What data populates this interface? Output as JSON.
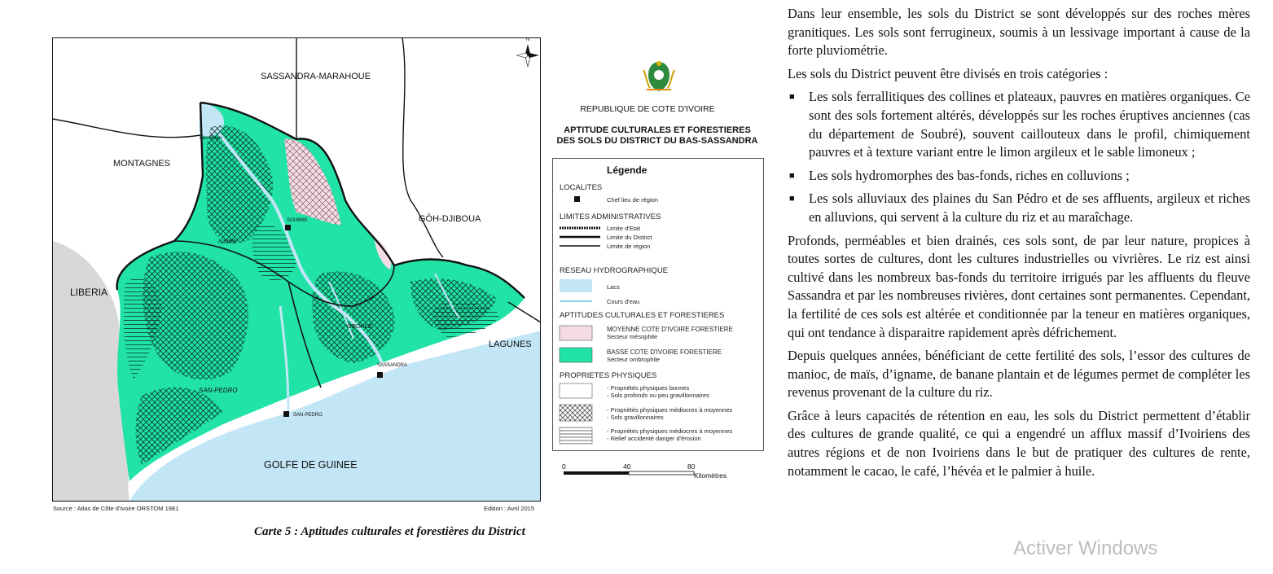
{
  "map": {
    "neighbors": {
      "sassandra_marahoue": "SASSANDRA-MARAHOUE",
      "montagnes": "MONTAGNES",
      "goh_djiboua": "GÔH-DJIBOUA",
      "liberia": "LIBERIA",
      "lagunes": "LAGUNES",
      "golfe": "GOLFE DE GUINEE"
    },
    "places": {
      "lac_buyo": "Lac Buyo",
      "soubre": "SOUBRE",
      "nawa": "NAWA",
      "gbokle": "GBOKLE",
      "sassandra": "SASSANDRA",
      "san_pedro_region": "SAN-PEDRO",
      "san_pedro_town": "SAN-PEDRO",
      "north": "N"
    },
    "source": "Source : Atlas de Côte d'Ivoire ORSTOM 1981",
    "edition": "Edition : Avril 2015",
    "caption": "Carte 5 : Aptitudes culturales et forestières du District",
    "colors": {
      "ombrophile": "#21e3a7",
      "mesophile": "#f5dbe3",
      "water": "#c3e6f7",
      "outside": "#d8d8d8",
      "boundary": "#111111"
    }
  },
  "header": {
    "republic": "REPUBLIQUE DE COTE D'IVOIRE",
    "title_line1": "APTITUDE CULTURALES ET FORESTIERES",
    "title_line2": "DES SOLS DU DISTRICT DU BAS-SASSANDRA",
    "emblem_icon": "coat-of-arms-icon"
  },
  "legend": {
    "title": "Légende",
    "localites": "LOCALITES",
    "chef_lieu": "Chef lieu de région",
    "limites": "LIMITES ADMINISTRATIVES",
    "limite_etat": "Limite d'Etat",
    "limite_district": "Limite du District",
    "limite_region": "Limite de région",
    "reseau": "RESEAU HYDROGRAPHIQUE",
    "lacs": "Lacs",
    "cours": "Cours d'eau",
    "aptitudes": "APTITUDES CULTURALES ET FORESTIERES",
    "moyenne_1": "MOYENNE COTE D'IVOIRE FORESTIERE",
    "moyenne_2": "Secteur mésophile",
    "basse_1": "BASSE COTE D'IVOIRE FORESTIERE",
    "basse_2": "Secteur ombrophile",
    "proprietes": "PROPRIETES PHYSIQUES",
    "p1_a": "- Propriétés physiques bonnes",
    "p1_b": "- Sols profonds ou peu gravillonnaires",
    "p2_a": "- Propriétés physiques médiocres à moyennes",
    "p2_b": "- Sols gravillonnaires",
    "p3_a": "- Propriétés physiques médiocres à moyennes",
    "p3_b": "- Relief accidenté danger d'érosion"
  },
  "scale": {
    "t0": "0",
    "t1": "40",
    "t2": "80",
    "unit": "Kilomètres"
  },
  "text": {
    "p1": "Dans leur ensemble, les sols du District se sont développés sur des roches mères granitiques. Les sols sont ferrugineux, soumis à un lessivage important à cause de la forte pluviométrie.",
    "p2": "Les sols du District peuvent être divisés en trois catégories :",
    "bullets": [
      "Les sols ferrallitiques des collines et plateaux, pauvres en matières organiques. Ce sont des sols fortement altérés, développés sur les roches éruptives anciennes (cas du département de Soubré), souvent caillouteux dans le profil, chimiquement pauvres et à texture variant entre le limon argileux et le sable limoneux ;",
      "Les sols hydromorphes des bas-fonds, riches en colluvions ;",
      "Les sols alluviaux des plaines du San Pédro et de ses affluents, argileux et riches en alluvions, qui servent à la culture du riz et au maraîchage."
    ],
    "bullet_glyph": "■",
    "p3": "Profonds, perméables et bien drainés, ces sols sont, de par leur nature, propices à toutes sortes de cultures, dont les cultures industrielles ou vivrières. Le riz est ainsi cultivé dans les nombreux bas-fonds du territoire irrigués par les affluents du fleuve Sassandra et par les nombreuses rivières, dont certaines sont permanentes. Cependant, la fertilité de ces sols est altérée et conditionnée par la teneur en matières organiques, qui ont tendance à disparaitre rapidement après défrichement.",
    "p4": "Depuis quelques années, bénéficiant de cette fertilité des sols, l’essor des cultures de manioc, de maïs, d’igname, de banane plantain et de légumes permet de compléter les revenus provenant de la culture du riz.",
    "p5": "Grâce à leurs capacités de rétention en eau, les sols du District permettent d’établir des cultures de grande qualité, ce qui a engendré un afflux massif d’Ivoiriens des autres régions et de non Ivoiriens dans le but de pratiquer des cultures de rente, notamment le cacao, le café, l’hévéa et le palmier à huile."
  },
  "watermark": "Activer Windows"
}
